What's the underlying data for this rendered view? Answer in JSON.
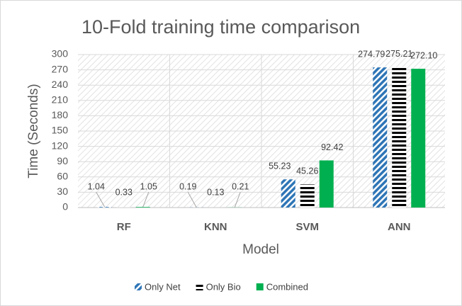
{
  "chart_data": {
    "type": "bar",
    "title": "10-Fold training time comparison",
    "x_label": "Model",
    "y_label": "Time (Seconds)",
    "categories": [
      "RF",
      "KNN",
      "SVM",
      "ANN"
    ],
    "series": [
      {
        "name": "Only Net",
        "color": "#2e75b6",
        "pattern": "diagonal",
        "values": [
          1.04,
          0.19,
          55.23,
          274.79
        ],
        "value_labels": [
          "1.04",
          "0.19",
          "55.23",
          "274.79"
        ]
      },
      {
        "name": "Only Bio",
        "color": "#000000",
        "pattern": "horizontal",
        "values": [
          0.33,
          0.13,
          45.26,
          275.21
        ],
        "value_labels": [
          "0.33",
          "0.13",
          "45.26",
          "275.21"
        ]
      },
      {
        "name": "Combined",
        "color": "#00b050",
        "pattern": "solid",
        "values": [
          1.05,
          0.21,
          92.42,
          272.1
        ],
        "value_labels": [
          "1.05",
          "0.21",
          "92.42",
          "272.10"
        ]
      }
    ],
    "ylim": [
      0,
      300
    ],
    "yticks": [
      0,
      30,
      60,
      90,
      120,
      150,
      180,
      210,
      240,
      270,
      300
    ],
    "grid": true,
    "legend": "bottom"
  }
}
